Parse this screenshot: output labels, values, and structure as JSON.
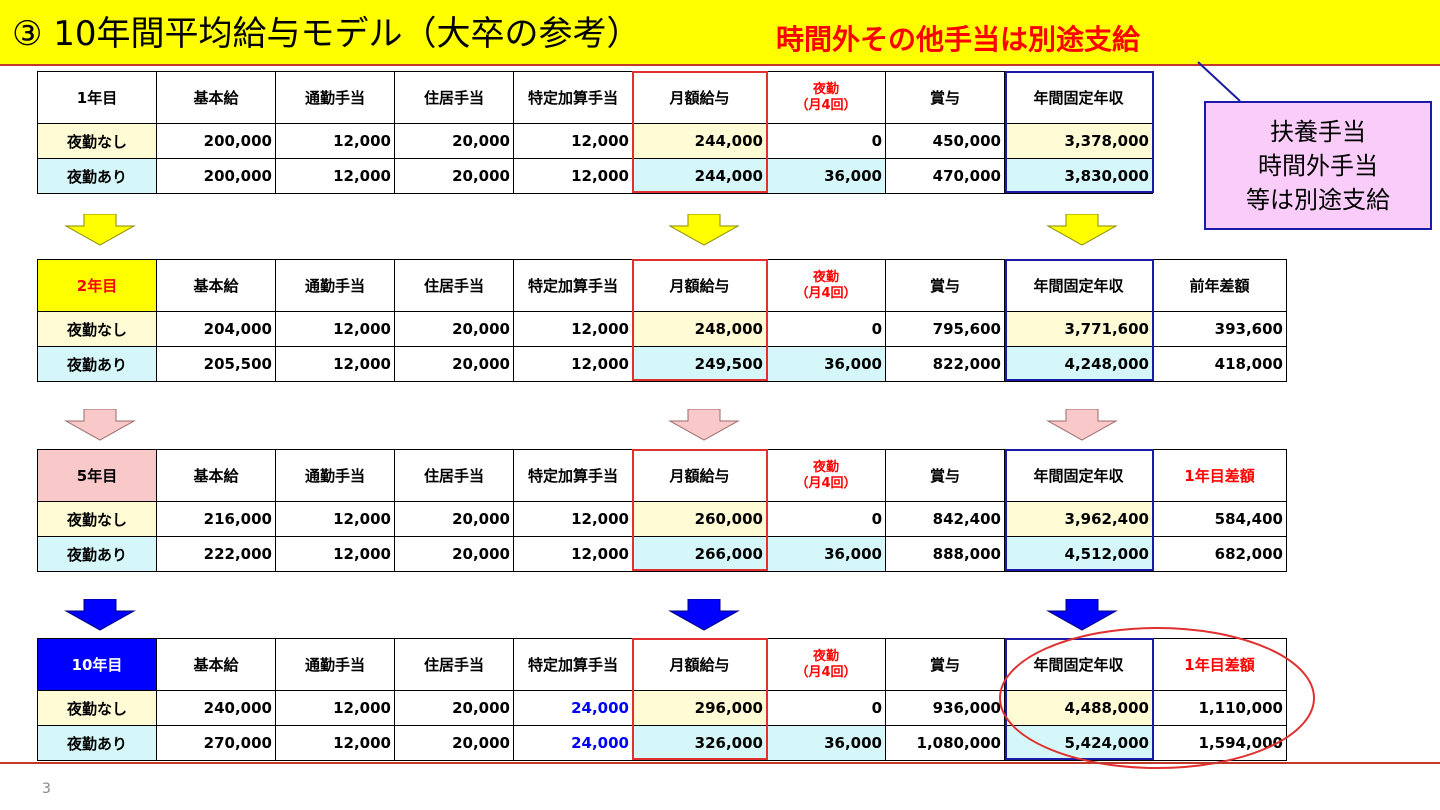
{
  "header": {
    "title": "③ 10年間平均給与モデル（大卒の参考）",
    "subtitle": "時間外その他手当は別途支給"
  },
  "note": {
    "lines": [
      "扶養手当",
      "時間外手当",
      "等は別途支給"
    ]
  },
  "page_number": "3",
  "tables": [
    {
      "year_label": "1年目",
      "headers": [
        "基本給",
        "通勤手当",
        "住居手当",
        "特定加算手当",
        "月額給与",
        "夜勤",
        "（月4回）",
        "賞与",
        "年間固定年収",
        ""
      ],
      "rows": [
        {
          "label": "夜勤なし",
          "values": [
            "200,000",
            "12,000",
            "20,000",
            "12,000",
            "244,000",
            "0",
            "450,000",
            "3,378,000",
            ""
          ]
        },
        {
          "label": "夜勤あり",
          "values": [
            "200,000",
            "12,000",
            "20,000",
            "12,000",
            "244,000",
            "36,000",
            "470,000",
            "3,830,000",
            ""
          ]
        }
      ]
    },
    {
      "year_label": "2年目",
      "headers": [
        "基本給",
        "通勤手当",
        "住居手当",
        "特定加算手当",
        "月額給与",
        "夜勤",
        "（月4回）",
        "賞与",
        "年間固定年収",
        "前年差額"
      ],
      "rows": [
        {
          "label": "夜勤なし",
          "values": [
            "204,000",
            "12,000",
            "20,000",
            "12,000",
            "248,000",
            "0",
            "795,600",
            "3,771,600",
            "393,600"
          ]
        },
        {
          "label": "夜勤あり",
          "values": [
            "205,500",
            "12,000",
            "20,000",
            "12,000",
            "249,500",
            "36,000",
            "822,000",
            "4,248,000",
            "418,000"
          ]
        }
      ]
    },
    {
      "year_label": "5年目",
      "headers": [
        "基本給",
        "通勤手当",
        "住居手当",
        "特定加算手当",
        "月額給与",
        "夜勤",
        "（月4回）",
        "賞与",
        "年間固定年収",
        "1年目差額"
      ],
      "rows": [
        {
          "label": "夜勤なし",
          "values": [
            "216,000",
            "12,000",
            "20,000",
            "12,000",
            "260,000",
            "0",
            "842,400",
            "3,962,400",
            "584,400"
          ]
        },
        {
          "label": "夜勤あり",
          "values": [
            "222,000",
            "12,000",
            "20,000",
            "12,000",
            "266,000",
            "36,000",
            "888,000",
            "4,512,000",
            "682,000"
          ]
        }
      ]
    },
    {
      "year_label": "10年目",
      "headers": [
        "基本給",
        "通勤手当",
        "住居手当",
        "特定加算手当",
        "月額給与",
        "夜勤",
        "（月4回）",
        "賞与",
        "年間固定年収",
        "1年目差額"
      ],
      "rows": [
        {
          "label": "夜勤なし",
          "values": [
            "240,000",
            "12,000",
            "20,000",
            "24,000",
            "296,000",
            "0",
            "936,000",
            "4,488,000",
            "1,110,000"
          ]
        },
        {
          "label": "夜勤あり",
          "values": [
            "270,000",
            "12,000",
            "20,000",
            "24,000",
            "326,000",
            "36,000",
            "1,080,000",
            "5,424,000",
            "1,594,000"
          ]
        }
      ]
    }
  ],
  "colors": {
    "header_bg": "#ffff00",
    "alert_red": "#ff0000",
    "no_night_row": "#fffbd5",
    "night_row": "#d6f7f9",
    "arrow_yellow": "#ffff00",
    "arrow_pink": "#f9c9c9",
    "arrow_blue": "#0000ff",
    "note_bg": "#f9ccf9",
    "highlight_blue_text": "#0000ff"
  }
}
